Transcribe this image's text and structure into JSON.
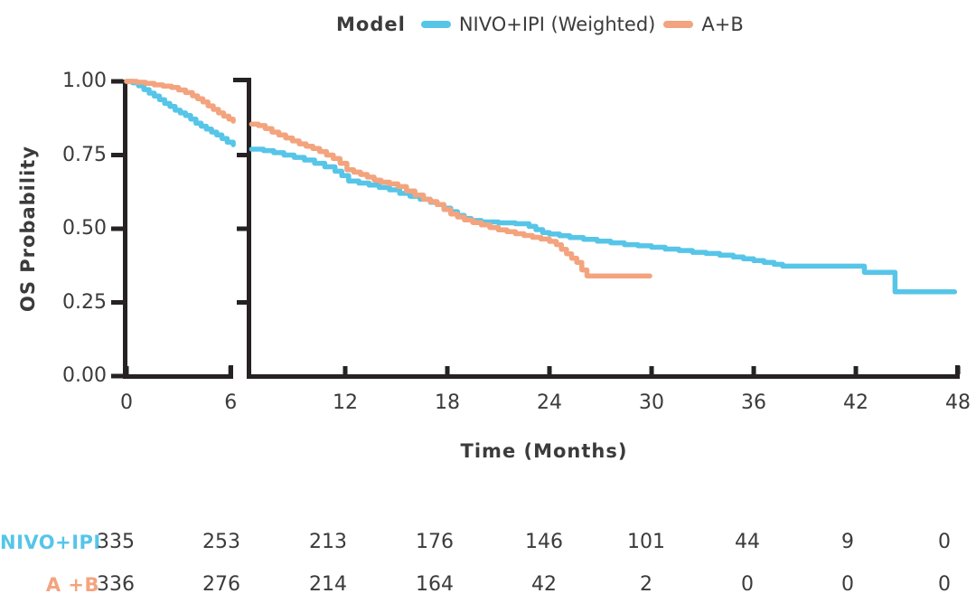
{
  "legend": {
    "title": "Model",
    "series": [
      {
        "label": "NIVO+IPI (Weighted)",
        "color": "#56C5E8"
      },
      {
        "label": "A+B",
        "color": "#F3A47E"
      }
    ]
  },
  "chart_data": {
    "type": "line",
    "subtype": "kaplan-meier-step",
    "title": "",
    "xlabel": "Time (Months)",
    "ylabel": "OS Probability",
    "ylim": [
      0.0,
      1.0
    ],
    "axis_break_after_month": 6,
    "axis_color": "#262223",
    "text_color": "#3b3b3b",
    "grid": false,
    "legend_position": "top",
    "yticks": [
      {
        "label": "1.00",
        "p": 1.0
      },
      {
        "label": "0.75",
        "p": 0.75
      },
      {
        "label": "0.50",
        "p": 0.5
      },
      {
        "label": "0.25",
        "p": 0.25
      },
      {
        "label": "0.00",
        "p": 0.0
      }
    ],
    "xticks_panel1": [
      0,
      6
    ],
    "xticks_panel2": [
      12,
      18,
      24,
      30,
      36,
      42,
      48
    ],
    "series": [
      {
        "name": "NIVO+IPI (Weighted)",
        "color": "#56C5E8",
        "panel1": [
          [
            0,
            1
          ],
          [
            0.35,
            0.995
          ],
          [
            0.7,
            0.985
          ],
          [
            1,
            0.972
          ],
          [
            1.3,
            0.96
          ],
          [
            1.6,
            0.95
          ],
          [
            1.9,
            0.938
          ],
          [
            2.2,
            0.925
          ],
          [
            2.5,
            0.915
          ],
          [
            2.8,
            0.902
          ],
          [
            3.1,
            0.893
          ],
          [
            3.4,
            0.884
          ],
          [
            3.7,
            0.872
          ],
          [
            4,
            0.858
          ],
          [
            4.3,
            0.848
          ],
          [
            4.6,
            0.838
          ],
          [
            4.9,
            0.828
          ],
          [
            5.2,
            0.818
          ],
          [
            5.5,
            0.806
          ],
          [
            5.8,
            0.794
          ],
          [
            6.15,
            0.785
          ]
        ],
        "panel2": [
          [
            6.5,
            0.77
          ],
          [
            7.2,
            0.765
          ],
          [
            7.8,
            0.758
          ],
          [
            8.4,
            0.75
          ],
          [
            9,
            0.742
          ],
          [
            9.6,
            0.733
          ],
          [
            10.2,
            0.722
          ],
          [
            10.8,
            0.71
          ],
          [
            11.4,
            0.695
          ],
          [
            11.8,
            0.68
          ],
          [
            12.2,
            0.662
          ],
          [
            12.8,
            0.655
          ],
          [
            13.4,
            0.648
          ],
          [
            14,
            0.64
          ],
          [
            14.6,
            0.632
          ],
          [
            15.2,
            0.62
          ],
          [
            15.8,
            0.61
          ],
          [
            16.4,
            0.6
          ],
          [
            17,
            0.59
          ],
          [
            17.4,
            0.582
          ],
          [
            17.8,
            0.57
          ],
          [
            18.2,
            0.558
          ],
          [
            18.6,
            0.545
          ],
          [
            19,
            0.535
          ],
          [
            19.4,
            0.528
          ],
          [
            20,
            0.523
          ],
          [
            21,
            0.52
          ],
          [
            22,
            0.517
          ],
          [
            22.8,
            0.508
          ],
          [
            23.2,
            0.497
          ],
          [
            23.6,
            0.487
          ],
          [
            24,
            0.482
          ],
          [
            24.6,
            0.476
          ],
          [
            25.2,
            0.47
          ],
          [
            26,
            0.464
          ],
          [
            26.8,
            0.458
          ],
          [
            27.6,
            0.452
          ],
          [
            28.4,
            0.446
          ],
          [
            29.2,
            0.442
          ],
          [
            30,
            0.437
          ],
          [
            30.8,
            0.431
          ],
          [
            31.6,
            0.426
          ],
          [
            32.4,
            0.42
          ],
          [
            33.2,
            0.416
          ],
          [
            34,
            0.41
          ],
          [
            34.8,
            0.404
          ],
          [
            35.4,
            0.398
          ],
          [
            36,
            0.392
          ],
          [
            36.6,
            0.386
          ],
          [
            37.2,
            0.379
          ],
          [
            37.7,
            0.373
          ],
          [
            42.5,
            0.352
          ],
          [
            44.3,
            0.286
          ],
          [
            47.8,
            0.286
          ]
        ]
      },
      {
        "name": "A+B",
        "color": "#F3A47E",
        "panel1": [
          [
            0,
            1
          ],
          [
            0.6,
            0.997
          ],
          [
            1.1,
            0.993
          ],
          [
            1.6,
            0.988
          ],
          [
            2.1,
            0.984
          ],
          [
            2.6,
            0.979
          ],
          [
            3,
            0.971
          ],
          [
            3.4,
            0.962
          ],
          [
            3.8,
            0.951
          ],
          [
            4.1,
            0.941
          ],
          [
            4.4,
            0.93
          ],
          [
            4.7,
            0.917
          ],
          [
            5,
            0.905
          ],
          [
            5.3,
            0.893
          ],
          [
            5.6,
            0.882
          ],
          [
            5.9,
            0.872
          ],
          [
            6.15,
            0.865
          ]
        ],
        "panel2": [
          [
            6.5,
            0.855
          ],
          [
            6.9,
            0.85
          ],
          [
            7.3,
            0.84
          ],
          [
            7.7,
            0.828
          ],
          [
            8.1,
            0.818
          ],
          [
            8.5,
            0.808
          ],
          [
            8.9,
            0.798
          ],
          [
            9.3,
            0.788
          ],
          [
            9.7,
            0.78
          ],
          [
            10.1,
            0.772
          ],
          [
            10.5,
            0.762
          ],
          [
            10.9,
            0.75
          ],
          [
            11.3,
            0.738
          ],
          [
            11.7,
            0.722
          ],
          [
            12.1,
            0.7
          ],
          [
            12.5,
            0.692
          ],
          [
            12.9,
            0.684
          ],
          [
            13.3,
            0.675
          ],
          [
            13.7,
            0.665
          ],
          [
            14.1,
            0.658
          ],
          [
            14.6,
            0.652
          ],
          [
            15.1,
            0.643
          ],
          [
            15.6,
            0.628
          ],
          [
            16.1,
            0.614
          ],
          [
            16.6,
            0.6
          ],
          [
            17,
            0.592
          ],
          [
            17.4,
            0.582
          ],
          [
            17.8,
            0.565
          ],
          [
            18.2,
            0.55
          ],
          [
            18.6,
            0.54
          ],
          [
            19,
            0.53
          ],
          [
            19.5,
            0.521
          ],
          [
            20,
            0.513
          ],
          [
            20.5,
            0.504
          ],
          [
            21,
            0.496
          ],
          [
            21.5,
            0.49
          ],
          [
            22,
            0.483
          ],
          [
            22.5,
            0.477
          ],
          [
            23,
            0.471
          ],
          [
            23.5,
            0.465
          ],
          [
            24,
            0.457
          ],
          [
            24.4,
            0.446
          ],
          [
            24.7,
            0.43
          ],
          [
            25,
            0.415
          ],
          [
            25.3,
            0.4
          ],
          [
            25.6,
            0.386
          ],
          [
            25.9,
            0.36
          ],
          [
            26.2,
            0.34
          ],
          [
            29.9,
            0.34
          ]
        ]
      }
    ]
  },
  "risk_table": {
    "times": [
      0,
      6,
      12,
      18,
      24,
      30,
      36,
      42,
      48
    ],
    "rows": [
      {
        "label": "NIVO+IPI",
        "color": "#56C5E8",
        "values": [
          "335",
          "253",
          "213",
          "176",
          "146",
          "101",
          "44",
          "9",
          "0"
        ]
      },
      {
        "label": "A +B",
        "color": "#F3A47E",
        "values": [
          "336",
          "276",
          "214",
          "164",
          "42",
          "2",
          "0",
          "0",
          "0"
        ]
      }
    ]
  }
}
